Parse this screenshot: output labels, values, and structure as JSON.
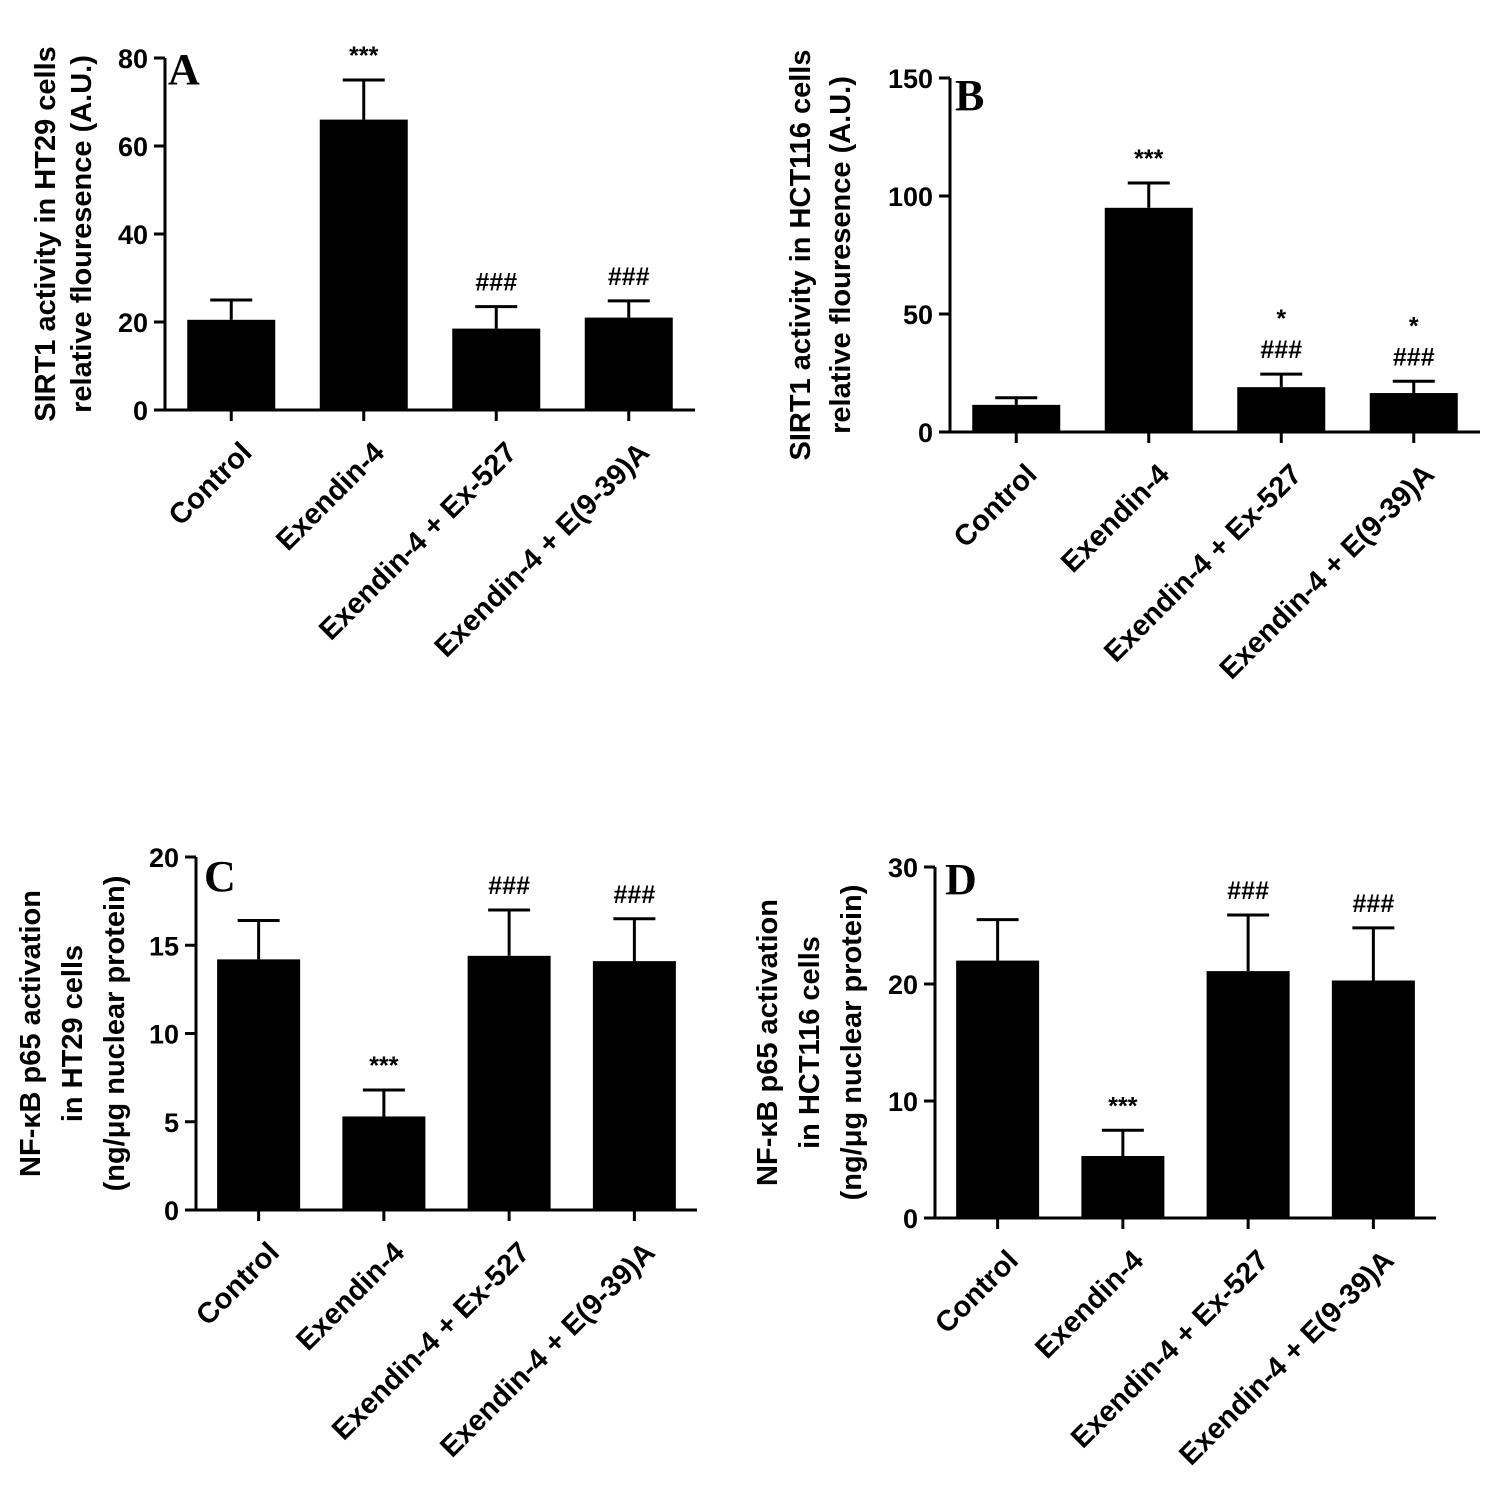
{
  "chart_data": [
    {
      "panel": "A",
      "type": "bar",
      "categories": [
        "Control",
        "Exendin-4",
        "Exendin-4 + Ex-527",
        "Exendin-4 + E(9-39)A"
      ],
      "values": [
        20.5,
        66,
        18.5,
        21
      ],
      "errors": [
        4.5,
        9,
        5,
        3.8
      ],
      "annotations": [
        [],
        [
          "***"
        ],
        [
          "###"
        ],
        [
          "###"
        ]
      ],
      "ylabel": [
        "SIRT1 activity in HT29 cells",
        "relative flouresence (A.U.)"
      ],
      "ylim": [
        0,
        80
      ],
      "yticks": [
        0,
        20,
        40,
        60,
        80
      ],
      "ytick_labels": [
        "0",
        "20",
        "40",
        "60",
        "80"
      ]
    },
    {
      "panel": "B",
      "type": "bar",
      "categories": [
        "Control",
        "Exendin-4",
        "Exendin-4 + Ex-527",
        "Exendin-4 + E(9-39)A"
      ],
      "values": [
        11.5,
        95,
        19,
        16.5
      ],
      "errors": [
        3,
        10.5,
        5.5,
        5
      ],
      "annotations": [
        [],
        [
          "***"
        ],
        [
          "*",
          "###"
        ],
        [
          "*",
          "###"
        ]
      ],
      "ylabel": [
        "SIRT1 activity in HCT116 cells",
        "relative flouresence (A.U.)"
      ],
      "ylim": [
        0,
        150
      ],
      "yticks": [
        0,
        50,
        100,
        150
      ],
      "ytick_labels": [
        "0",
        "50",
        "100",
        "150"
      ]
    },
    {
      "panel": "C",
      "type": "bar",
      "categories": [
        "Control",
        "Exendin-4",
        "Exendin-4 + Ex-527",
        "Exendin-4 + E(9-39)A"
      ],
      "values": [
        14.2,
        5.3,
        14.4,
        14.1
      ],
      "errors": [
        2.2,
        1.5,
        2.6,
        2.4
      ],
      "annotations": [
        [],
        [
          "***"
        ],
        [
          "###"
        ],
        [
          "###"
        ]
      ],
      "ylabel": [
        "NF-κB p65 activation",
        "in HT29 cells",
        "(ng/μg nuclear protein)"
      ],
      "ylim": [
        0,
        20
      ],
      "yticks": [
        0,
        5,
        10,
        15,
        20
      ],
      "ytick_labels": [
        "0",
        "5",
        "10",
        "15",
        "20"
      ]
    },
    {
      "panel": "D",
      "type": "bar",
      "categories": [
        "Control",
        "Exendin-4",
        "Exendin-4 + Ex-527",
        "Exendin-4 + E(9-39)A"
      ],
      "values": [
        22,
        5.3,
        21.1,
        20.3
      ],
      "errors": [
        3.5,
        2.2,
        4.8,
        4.5
      ],
      "annotations": [
        [],
        [
          "***"
        ],
        [
          "###"
        ],
        [
          "###"
        ]
      ],
      "ylabel": [
        "NF-κB p65 activation",
        "in HCT116 cells",
        "(ng/μg nuclear protein)"
      ],
      "ylim": [
        0,
        30
      ],
      "yticks": [
        0,
        10,
        20,
        30
      ],
      "ytick_labels": [
        "0",
        "10",
        "20",
        "30"
      ]
    }
  ],
  "colors": {
    "bar": "#000000",
    "axis": "#000000"
  }
}
